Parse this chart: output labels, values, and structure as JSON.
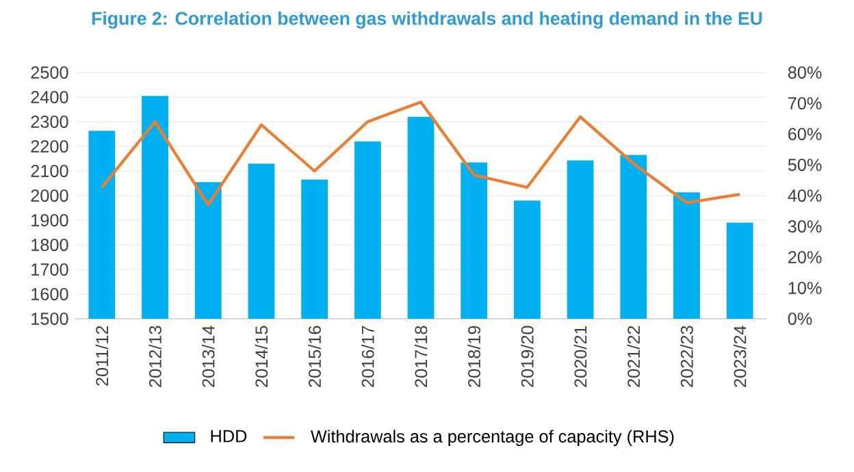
{
  "chart_data": {
    "type": "bar",
    "title": "Figure 2: Correlation between gas withdrawals and heating demand in the EU",
    "categories": [
      "2011/12",
      "2012/13",
      "2013/14",
      "2014/15",
      "2015/16",
      "2016/17",
      "2017/18",
      "2018/19",
      "2019/20",
      "2020/21",
      "2021/22",
      "2022/23",
      "2023/24"
    ],
    "series": [
      {
        "name": "HDD",
        "color": "#00b0f0",
        "values": [
          2263,
          2405,
          2055,
          2130,
          2065,
          2220,
          2320,
          2135,
          1980,
          2143,
          2165,
          2013,
          1890
        ]
      },
      {
        "name": "Withdrawals as a percentage of capacity (RHS)",
        "type": "line",
        "axis": "y2",
        "color": "#ed7d31",
        "values": [
          42.7,
          64,
          37,
          63,
          48,
          64,
          70.4,
          46.7,
          42.7,
          65.6,
          50.4,
          37.7,
          40.4
        ]
      }
    ],
    "ylim": [
      1500,
      2500
    ],
    "yticks": [
      1500,
      1600,
      1700,
      1800,
      1900,
      2000,
      2100,
      2200,
      2300,
      2400,
      2500
    ],
    "y2lim": [
      0,
      80
    ],
    "y2ticks": [
      {
        "value": 0,
        "label": "0%"
      },
      {
        "value": 10,
        "label": "10%"
      },
      {
        "value": 20,
        "label": "20%"
      },
      {
        "value": 30,
        "label": "30%"
      },
      {
        "value": 40,
        "label": "40%"
      },
      {
        "value": 50,
        "label": "50%"
      },
      {
        "value": 60,
        "label": "60%"
      },
      {
        "value": 70,
        "label": "70%"
      },
      {
        "value": 80,
        "label": "80%"
      }
    ],
    "grid": "y",
    "legend": "bottom",
    "marker": "none",
    "line_style": "solid"
  }
}
